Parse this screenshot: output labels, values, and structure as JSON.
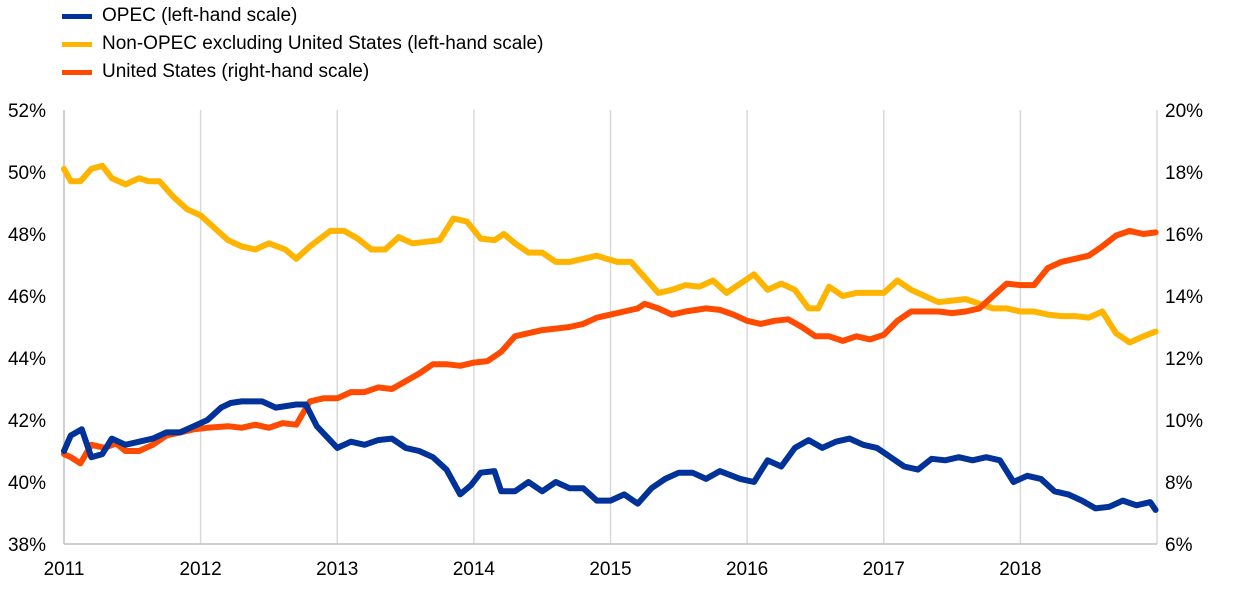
{
  "chart_data": {
    "type": "line",
    "title": "",
    "x_ticks": [
      "2011",
      "2012",
      "2013",
      "2014",
      "2015",
      "2016",
      "2017",
      "2018"
    ],
    "x_range": [
      2011.0,
      2019.0
    ],
    "y_left": {
      "range": [
        38,
        52
      ],
      "ticks": [
        "38%",
        "40%",
        "42%",
        "44%",
        "46%",
        "48%",
        "50%",
        "52%"
      ]
    },
    "y_right": {
      "range": [
        6,
        20
      ],
      "ticks": [
        "6%",
        "8%",
        "10%",
        "12%",
        "14%",
        "16%",
        "18%",
        "20%"
      ]
    },
    "grid": "vertical",
    "legend_position": "top-left",
    "series": [
      {
        "name": "OPEC (left-hand scale)",
        "axis": "left",
        "color": "#003299",
        "x": [
          2011.0,
          2011.05,
          2011.13,
          2011.2,
          2011.28,
          2011.35,
          2011.45,
          2011.55,
          2011.65,
          2011.75,
          2011.85,
          2011.95,
          2012.05,
          2012.15,
          2012.22,
          2012.3,
          2012.45,
          2012.55,
          2012.7,
          2012.77,
          2012.85,
          2013.0,
          2013.1,
          2013.2,
          2013.3,
          2013.4,
          2013.5,
          2013.6,
          2013.7,
          2013.8,
          2013.9,
          2013.98,
          2014.05,
          2014.15,
          2014.2,
          2014.3,
          2014.4,
          2014.5,
          2014.6,
          2014.7,
          2014.8,
          2014.9,
          2015.0,
          2015.1,
          2015.2,
          2015.3,
          2015.4,
          2015.5,
          2015.6,
          2015.7,
          2015.8,
          2015.95,
          2016.05,
          2016.15,
          2016.25,
          2016.35,
          2016.45,
          2016.55,
          2016.65,
          2016.75,
          2016.85,
          2016.95,
          2017.05,
          2017.15,
          2017.25,
          2017.35,
          2017.45,
          2017.55,
          2017.65,
          2017.75,
          2017.85,
          2017.95,
          2018.05,
          2018.15,
          2018.25,
          2018.35,
          2018.45,
          2018.55,
          2018.65,
          2018.75,
          2018.85,
          2018.95,
          2018.99
        ],
        "y": [
          41.0,
          41.5,
          41.7,
          40.8,
          40.9,
          41.4,
          41.2,
          41.3,
          41.4,
          41.6,
          41.6,
          41.8,
          42.0,
          42.4,
          42.55,
          42.6,
          42.6,
          42.4,
          42.5,
          42.5,
          41.8,
          41.1,
          41.3,
          41.2,
          41.35,
          41.4,
          41.1,
          41.0,
          40.8,
          40.4,
          39.6,
          39.9,
          40.3,
          40.35,
          39.7,
          39.7,
          40.0,
          39.7,
          40.0,
          39.8,
          39.8,
          39.4,
          39.4,
          39.6,
          39.3,
          39.8,
          40.1,
          40.3,
          40.3,
          40.1,
          40.35,
          40.1,
          40.0,
          40.7,
          40.5,
          41.1,
          41.35,
          41.1,
          41.3,
          41.4,
          41.2,
          41.1,
          40.8,
          40.5,
          40.4,
          40.75,
          40.7,
          40.8,
          40.7,
          40.8,
          40.7,
          40.0,
          40.2,
          40.1,
          39.7,
          39.6,
          39.4,
          39.15,
          39.2,
          39.4,
          39.25,
          39.35,
          39.1
        ]
      },
      {
        "name": "Non-OPEC excluding United States (left-hand scale)",
        "axis": "left",
        "color": "#ffb400",
        "x": [
          2011.0,
          2011.05,
          2011.12,
          2011.2,
          2011.28,
          2011.35,
          2011.45,
          2011.55,
          2011.62,
          2011.7,
          2011.8,
          2011.9,
          2012.0,
          2012.1,
          2012.2,
          2012.3,
          2012.4,
          2012.5,
          2012.62,
          2012.7,
          2012.8,
          2012.95,
          2013.05,
          2013.15,
          2013.25,
          2013.35,
          2013.45,
          2013.55,
          2013.65,
          2013.75,
          2013.85,
          2013.95,
          2014.05,
          2014.15,
          2014.22,
          2014.3,
          2014.4,
          2014.5,
          2014.6,
          2014.7,
          2014.8,
          2014.9,
          2014.97,
          2015.05,
          2015.15,
          2015.25,
          2015.35,
          2015.45,
          2015.55,
          2015.65,
          2015.75,
          2015.85,
          2015.95,
          2016.05,
          2016.15,
          2016.25,
          2016.35,
          2016.45,
          2016.52,
          2016.6,
          2016.7,
          2016.8,
          2016.9,
          2017.0,
          2017.1,
          2017.2,
          2017.3,
          2017.4,
          2017.5,
          2017.6,
          2017.7,
          2017.8,
          2017.9,
          2018.0,
          2018.1,
          2018.2,
          2018.3,
          2018.4,
          2018.5,
          2018.6,
          2018.7,
          2018.8,
          2018.9,
          2018.99
        ],
        "y": [
          50.1,
          49.7,
          49.7,
          50.1,
          50.2,
          49.8,
          49.6,
          49.8,
          49.7,
          49.7,
          49.2,
          48.8,
          48.6,
          48.2,
          47.8,
          47.6,
          47.5,
          47.7,
          47.5,
          47.2,
          47.6,
          48.1,
          48.1,
          47.85,
          47.5,
          47.5,
          47.9,
          47.7,
          47.75,
          47.8,
          48.5,
          48.4,
          47.85,
          47.8,
          48.0,
          47.7,
          47.4,
          47.4,
          47.1,
          47.1,
          47.2,
          47.3,
          47.2,
          47.1,
          47.1,
          46.6,
          46.1,
          46.2,
          46.35,
          46.3,
          46.5,
          46.1,
          46.4,
          46.7,
          46.2,
          46.4,
          46.2,
          45.6,
          45.6,
          46.3,
          46.0,
          46.1,
          46.1,
          46.1,
          46.5,
          46.2,
          46.0,
          45.8,
          45.85,
          45.9,
          45.75,
          45.6,
          45.6,
          45.5,
          45.5,
          45.4,
          45.35,
          45.35,
          45.3,
          45.5,
          44.8,
          44.5,
          44.7,
          44.85
        ]
      },
      {
        "name": "United States (right-hand scale)",
        "axis": "right",
        "color": "#ff4b00",
        "x": [
          2011.0,
          2011.05,
          2011.12,
          2011.2,
          2011.3,
          2011.38,
          2011.45,
          2011.55,
          2011.65,
          2011.75,
          2011.85,
          2011.95,
          2012.05,
          2012.2,
          2012.3,
          2012.4,
          2012.5,
          2012.6,
          2012.7,
          2012.8,
          2012.9,
          2013.0,
          2013.1,
          2013.2,
          2013.3,
          2013.4,
          2013.5,
          2013.6,
          2013.7,
          2013.8,
          2013.9,
          2014.0,
          2014.1,
          2014.2,
          2014.3,
          2014.4,
          2014.5,
          2014.6,
          2014.7,
          2014.8,
          2014.9,
          2015.0,
          2015.1,
          2015.2,
          2015.25,
          2015.35,
          2015.45,
          2015.55,
          2015.7,
          2015.8,
          2015.9,
          2016.0,
          2016.1,
          2016.2,
          2016.3,
          2016.4,
          2016.5,
          2016.6,
          2016.7,
          2016.8,
          2016.9,
          2017.0,
          2017.1,
          2017.2,
          2017.3,
          2017.4,
          2017.5,
          2017.6,
          2017.7,
          2017.8,
          2017.9,
          2018.0,
          2018.1,
          2018.2,
          2018.3,
          2018.4,
          2018.5,
          2018.6,
          2018.7,
          2018.8,
          2018.9,
          2018.99
        ],
        "y": [
          8.9,
          8.8,
          8.6,
          9.2,
          9.1,
          9.25,
          9.0,
          9.0,
          9.2,
          9.5,
          9.6,
          9.7,
          9.75,
          9.8,
          9.75,
          9.85,
          9.75,
          9.9,
          9.85,
          10.6,
          10.7,
          10.7,
          10.9,
          10.9,
          11.05,
          11.0,
          11.25,
          11.5,
          11.8,
          11.8,
          11.75,
          11.85,
          11.9,
          12.2,
          12.7,
          12.8,
          12.9,
          12.95,
          13.0,
          13.1,
          13.3,
          13.4,
          13.5,
          13.6,
          13.75,
          13.6,
          13.4,
          13.5,
          13.6,
          13.55,
          13.4,
          13.2,
          13.1,
          13.2,
          13.25,
          13.0,
          12.7,
          12.7,
          12.55,
          12.7,
          12.6,
          12.75,
          13.2,
          13.5,
          13.5,
          13.5,
          13.45,
          13.5,
          13.6,
          14.0,
          14.4,
          14.35,
          14.35,
          14.9,
          15.1,
          15.2,
          15.3,
          15.6,
          15.95,
          16.1,
          16.0,
          16.05
        ]
      }
    ]
  }
}
